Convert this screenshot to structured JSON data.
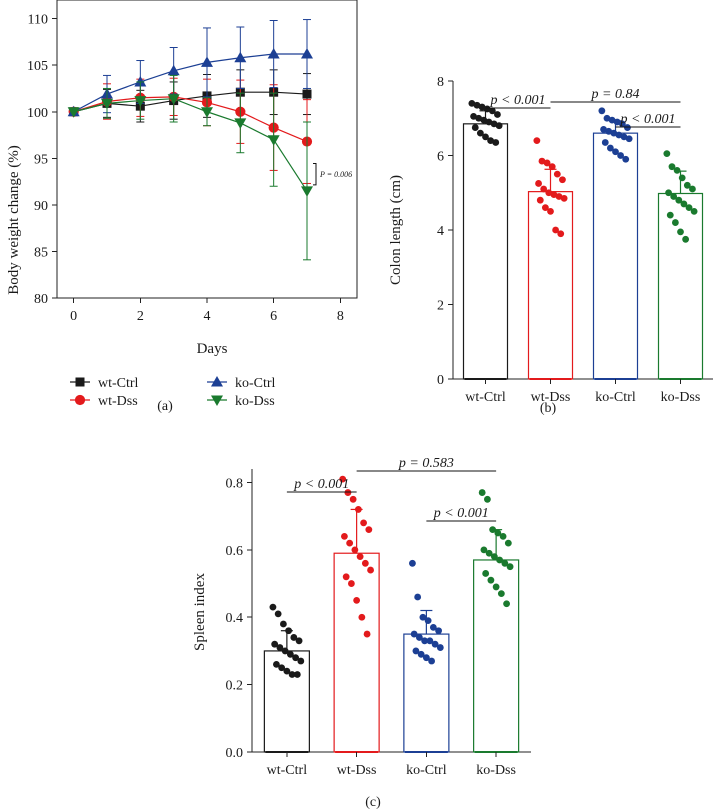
{
  "chart_data": [
    {
      "panel": "(a)",
      "type": "line",
      "xlabel": "Days",
      "ylabel": "Body weight change (%)",
      "xlim": [
        -0.5,
        8.5
      ],
      "ylim": [
        80,
        112
      ],
      "xticks": [
        0,
        2,
        4,
        6,
        8
      ],
      "yticks": [
        80,
        85,
        90,
        95,
        100,
        105,
        110
      ],
      "x": [
        0,
        1,
        2,
        3,
        4,
        5,
        6,
        7
      ],
      "series": [
        {
          "name": "wt-Ctrl",
          "color": "#1a1a1a",
          "marker": "square",
          "values": [
            100,
            100.9,
            100.6,
            101.2,
            101.7,
            102.1,
            102.1,
            101.9
          ],
          "errors": [
            0,
            1.5,
            1.7,
            2.0,
            2.3,
            2.4,
            2.4,
            2.2
          ]
        },
        {
          "name": "wt-Dss",
          "color": "#e31a1c",
          "marker": "circle",
          "values": [
            100,
            101.1,
            101.5,
            101.6,
            101.0,
            100.0,
            98.3,
            96.8
          ],
          "errors": [
            0,
            1.9,
            2.0,
            2.0,
            2.5,
            3.4,
            4.6,
            4.5
          ]
        },
        {
          "name": "ko-Ctrl",
          "color": "#1c3f94",
          "marker": "triangle-up",
          "values": [
            100,
            101.9,
            103.2,
            104.4,
            105.3,
            105.8,
            106.2,
            106.2
          ],
          "errors": [
            0,
            2.0,
            2.3,
            2.5,
            3.7,
            3.3,
            3.6,
            3.7
          ]
        },
        {
          "name": "ko-Dss",
          "color": "#1a7a2e",
          "marker": "triangle-down",
          "values": [
            100,
            100.9,
            101.2,
            101.4,
            100.0,
            98.8,
            97.0,
            91.5
          ],
          "errors": [
            0,
            1.6,
            2.0,
            2.5,
            1.5,
            3.2,
            5.0,
            7.4
          ]
        }
      ],
      "annotations": [
        {
          "text": "P = 0.006",
          "between": [
            "wt-Dss",
            "ko-Dss"
          ],
          "at_x": 7
        }
      ],
      "legend": [
        "wt-Ctrl",
        "wt-Dss",
        "ko-Ctrl",
        "ko-Dss"
      ]
    },
    {
      "panel": "(b)",
      "type": "bar",
      "ylabel": "Colon length (cm)",
      "ylim": [
        0,
        8
      ],
      "yticks": [
        0,
        2,
        4,
        6,
        8
      ],
      "categories": [
        "wt-Ctrl",
        "wt-Dss",
        "ko-Ctrl",
        "ko-Dss"
      ],
      "colors": [
        "#1a1a1a",
        "#e31a1c",
        "#1c3f94",
        "#1a7a2e"
      ],
      "values": [
        6.85,
        5.03,
        6.6,
        4.98
      ],
      "errors": [
        0.35,
        0.6,
        0.33,
        0.6
      ],
      "points": [
        [
          7.4,
          7.35,
          7.3,
          7.25,
          7.2,
          7.1,
          7.05,
          7.0,
          6.95,
          6.9,
          6.85,
          6.8,
          6.75,
          6.6,
          6.5,
          6.4,
          6.35
        ],
        [
          6.4,
          5.85,
          5.8,
          5.7,
          5.5,
          5.35,
          5.25,
          5.1,
          5.0,
          4.95,
          4.9,
          4.85,
          4.8,
          4.6,
          4.5,
          4.0,
          3.9
        ],
        [
          7.2,
          7.0,
          6.95,
          6.9,
          6.85,
          6.75,
          6.7,
          6.65,
          6.6,
          6.55,
          6.5,
          6.45,
          6.35,
          6.2,
          6.1,
          6.0,
          5.9
        ],
        [
          6.05,
          5.7,
          5.6,
          5.4,
          5.2,
          5.1,
          5.0,
          4.9,
          4.8,
          4.7,
          4.6,
          4.5,
          4.4,
          4.2,
          3.95,
          3.75
        ]
      ],
      "comparisons": [
        {
          "groups": [
            "wt-Ctrl",
            "wt-Dss"
          ],
          "text": "p < 0.001"
        },
        {
          "groups": [
            "wt-Dss",
            "ko-Dss"
          ],
          "text": "p = 0.84"
        },
        {
          "groups": [
            "ko-Ctrl",
            "ko-Dss"
          ],
          "text": "p < 0.001"
        }
      ]
    },
    {
      "panel": "(c)",
      "type": "bar",
      "ylabel": "Spleen index",
      "ylim": [
        0,
        0.84
      ],
      "yticks": [
        0.0,
        0.2,
        0.4,
        0.6,
        0.8
      ],
      "categories": [
        "wt-Ctrl",
        "wt-Dss",
        "ko-Ctrl",
        "ko-Dss"
      ],
      "colors": [
        "#1a1a1a",
        "#e31a1c",
        "#1c3f94",
        "#1a7a2e"
      ],
      "values": [
        0.3,
        0.59,
        0.35,
        0.57
      ],
      "errors": [
        0.06,
        0.13,
        0.07,
        0.09
      ],
      "points": [
        [
          0.43,
          0.41,
          0.38,
          0.36,
          0.34,
          0.33,
          0.32,
          0.31,
          0.3,
          0.29,
          0.28,
          0.27,
          0.26,
          0.25,
          0.24,
          0.23,
          0.23
        ],
        [
          0.81,
          0.77,
          0.75,
          0.72,
          0.68,
          0.66,
          0.64,
          0.62,
          0.6,
          0.58,
          0.56,
          0.54,
          0.52,
          0.5,
          0.45,
          0.4,
          0.35
        ],
        [
          0.56,
          0.46,
          0.4,
          0.39,
          0.37,
          0.36,
          0.35,
          0.34,
          0.33,
          0.33,
          0.32,
          0.31,
          0.3,
          0.29,
          0.28,
          0.27
        ],
        [
          0.77,
          0.75,
          0.66,
          0.65,
          0.64,
          0.62,
          0.6,
          0.59,
          0.58,
          0.57,
          0.56,
          0.55,
          0.53,
          0.51,
          0.49,
          0.47,
          0.44
        ]
      ],
      "comparisons": [
        {
          "groups": [
            "wt-Ctrl",
            "wt-Dss"
          ],
          "text": "p < 0.001"
        },
        {
          "groups": [
            "wt-Dss",
            "ko-Dss"
          ],
          "text": "p = 0.583"
        },
        {
          "groups": [
            "ko-Ctrl",
            "ko-Dss"
          ],
          "text": "p < 0.001"
        }
      ]
    }
  ]
}
